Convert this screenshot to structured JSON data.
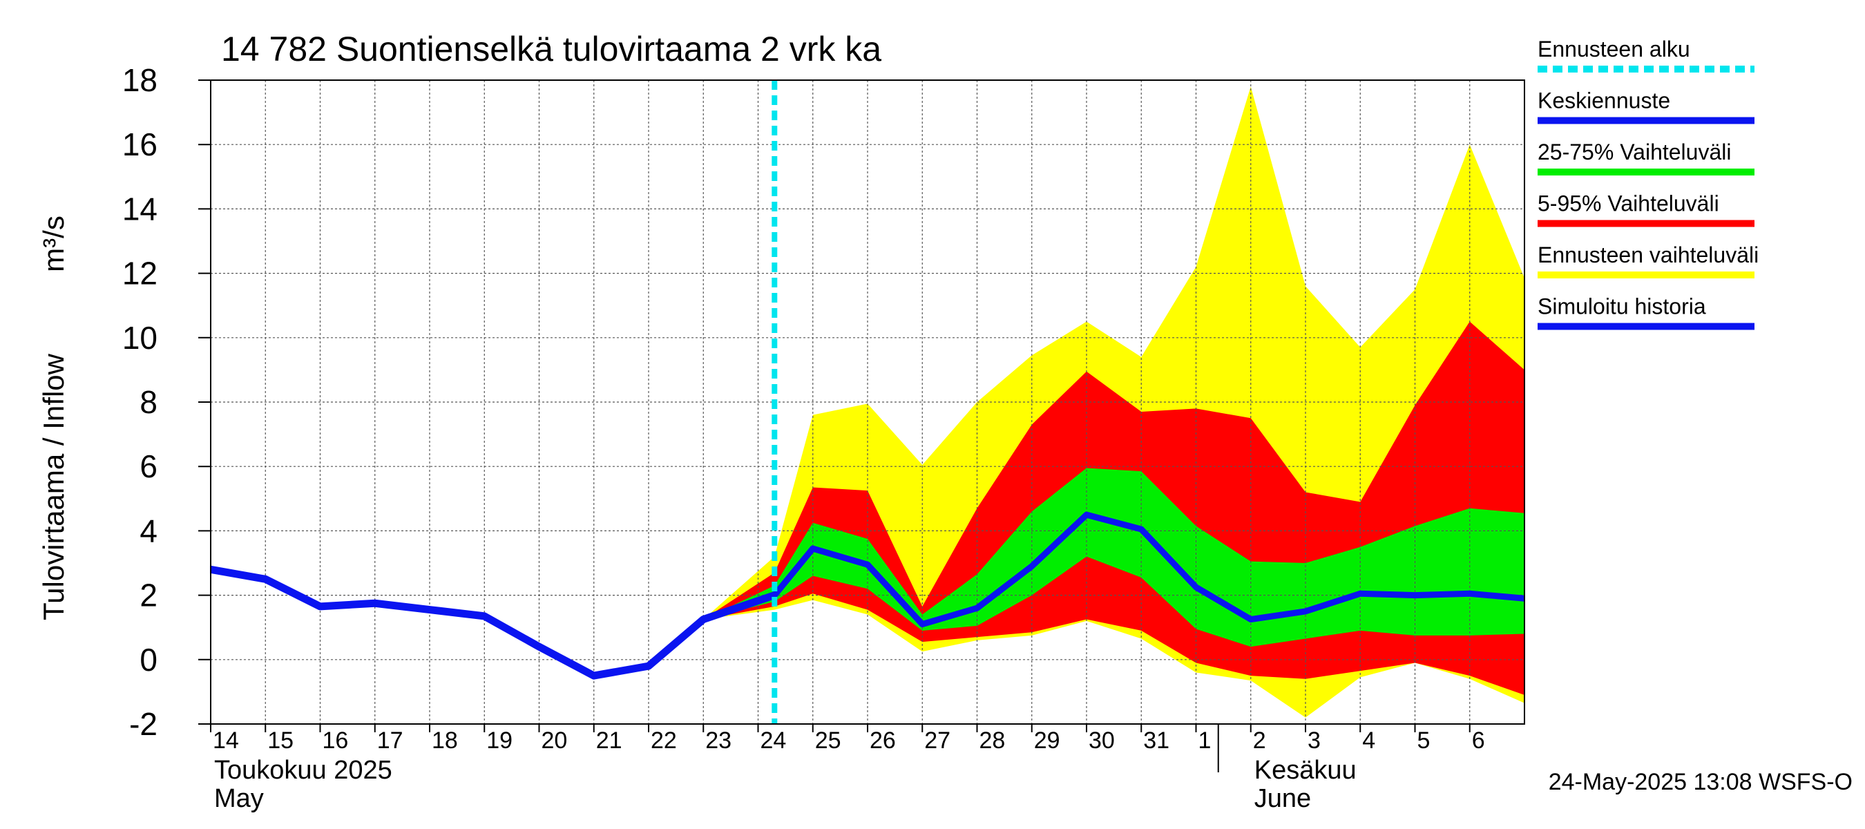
{
  "chart_data": {
    "type": "area",
    "title": "14 782 Suontienselkä tulovirtaama 2 vrk ka",
    "ylabel": "Tulovirtaama / Inflow",
    "yunit": "m³/s",
    "ylim": [
      -2,
      18
    ],
    "yticks": [
      "-2",
      "0",
      "2",
      "4",
      "6",
      "8",
      "10",
      "12",
      "14",
      "16",
      "18"
    ],
    "xlim": [
      0,
      24
    ],
    "x_days": [
      "14",
      "15",
      "16",
      "17",
      "18",
      "19",
      "20",
      "21",
      "22",
      "23",
      "24",
      "25",
      "26",
      "27",
      "28",
      "29",
      "30",
      "31",
      "1",
      "2",
      "3",
      "4",
      "5",
      "6"
    ],
    "month_labels": [
      {
        "fi": "Toukokuu  2025",
        "en": "May",
        "day_index": 0
      },
      {
        "fi": "Kesäkuu",
        "en": "June",
        "day_index": 19
      }
    ],
    "grid": true,
    "forecast_start": 10.3,
    "simulated_history": {
      "name": "Simuloitu historia",
      "x": [
        0,
        1,
        2,
        3,
        4,
        5,
        6,
        7,
        8,
        9,
        10.3
      ],
      "y": [
        2.8,
        2.5,
        1.65,
        1.75,
        1.55,
        1.35,
        0.4,
        -0.5,
        -0.2,
        1.25,
        2.0
      ]
    },
    "forecast_x": [
      9,
      10.3,
      11,
      12,
      13,
      14,
      15,
      16,
      17,
      18,
      19,
      20,
      21,
      22,
      23,
      24
    ],
    "mean_forecast": {
      "name": "Keskiennuste",
      "y": [
        1.25,
        2.0,
        3.45,
        2.95,
        1.1,
        1.6,
        2.9,
        4.5,
        4.05,
        2.25,
        1.25,
        1.5,
        2.05,
        2.0,
        2.05,
        1.9
      ]
    },
    "band_25_75": {
      "name": "25-75% Vaihteluväli",
      "low": [
        1.25,
        1.8,
        2.6,
        2.2,
        0.9,
        1.05,
        2.0,
        3.2,
        2.55,
        0.95,
        0.4,
        0.65,
        0.9,
        0.75,
        0.75,
        0.8
      ],
      "high": [
        1.25,
        2.3,
        4.25,
        3.75,
        1.4,
        2.65,
        4.6,
        5.95,
        5.85,
        4.15,
        3.05,
        3.0,
        3.5,
        4.15,
        4.7,
        4.55
      ]
    },
    "band_5_95": {
      "name": "5-95% Vaihteluväli",
      "low": [
        1.25,
        1.65,
        2.05,
        1.55,
        0.55,
        0.7,
        0.85,
        1.25,
        0.9,
        -0.1,
        -0.5,
        -0.6,
        -0.35,
        -0.1,
        -0.5,
        -1.1
      ],
      "high": [
        1.25,
        2.7,
        5.35,
        5.25,
        1.65,
        4.7,
        7.3,
        8.95,
        7.7,
        7.8,
        7.5,
        5.2,
        4.9,
        7.9,
        10.5,
        9.0
      ]
    },
    "band_ensemble": {
      "name": "Ennusteen vaihteluväli",
      "low": [
        1.25,
        1.55,
        1.85,
        1.4,
        0.25,
        0.6,
        0.75,
        1.2,
        0.65,
        -0.4,
        -0.65,
        -1.8,
        -0.55,
        -0.1,
        -0.6,
        -1.35
      ],
      "high": [
        1.25,
        3.2,
        7.6,
        7.95,
        6.05,
        8.0,
        9.45,
        10.5,
        9.4,
        12.2,
        17.8,
        11.6,
        9.7,
        11.5,
        16.0,
        11.85
      ]
    },
    "legend": {
      "position": "right",
      "items": [
        {
          "label": "Ennusteen alku",
          "color": "#00e5ee",
          "style": "dashed"
        },
        {
          "label": "Keskiennuste",
          "color": "#0a14f0",
          "style": "line"
        },
        {
          "label": "25-75% Vaihteluväli",
          "color": "#00ee00",
          "style": "line"
        },
        {
          "label": "5-95% Vaihteluväli",
          "color": "#ff0000",
          "style": "line"
        },
        {
          "label": "Ennusteen vaihteluväli",
          "color": "#ffff00",
          "style": "line"
        },
        {
          "label": "Simuloitu historia",
          "color": "#0a14f0",
          "style": "line"
        }
      ]
    },
    "colors": {
      "ensemble": "#ffff00",
      "p5_95": "#ff0000",
      "p25_75": "#00ee00",
      "mean": "#0a14f0",
      "forecast_start": "#00e5ee"
    },
    "footer": "24-May-2025 13:08 WSFS-O"
  }
}
